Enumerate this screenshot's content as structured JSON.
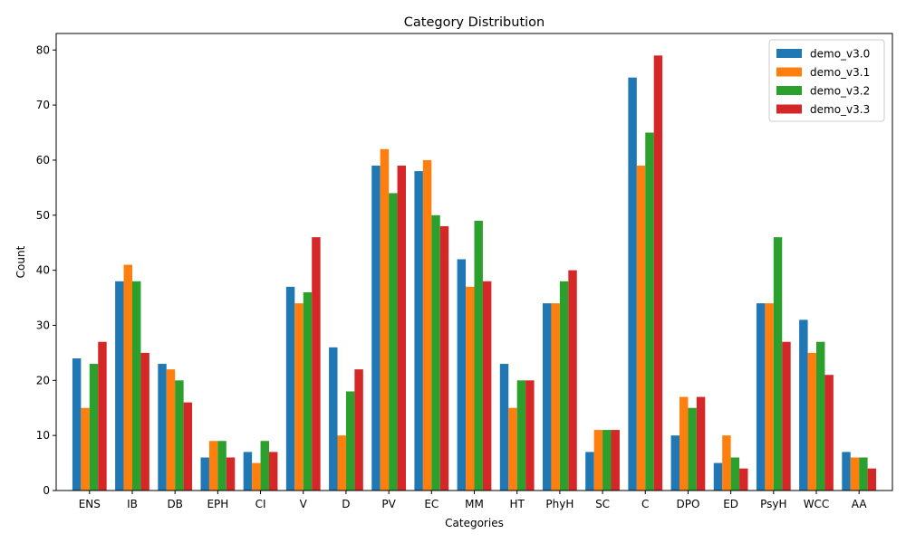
{
  "chart_data": {
    "type": "bar",
    "title": "Category Distribution",
    "xlabel": "Categories",
    "ylabel": "Count",
    "ylim": [
      0,
      83
    ],
    "yticks": [
      0,
      10,
      20,
      30,
      40,
      50,
      60,
      70,
      80
    ],
    "legend_position": "top-right",
    "grid": false,
    "categories": [
      "ENS",
      "IB",
      "DB",
      "EPH",
      "CI",
      "V",
      "D",
      "PV",
      "EC",
      "MM",
      "HT",
      "PhyH",
      "SC",
      "C",
      "DPO",
      "ED",
      "PsyH",
      "WCC",
      "AA"
    ],
    "series": [
      {
        "name": "demo_v3.0",
        "color": "#1f77b4",
        "values": [
          24,
          38,
          23,
          6,
          7,
          37,
          26,
          59,
          58,
          42,
          23,
          34,
          7,
          75,
          10,
          5,
          34,
          31,
          7
        ]
      },
      {
        "name": "demo_v3.1",
        "color": "#ff7f0e",
        "values": [
          15,
          41,
          22,
          9,
          5,
          34,
          10,
          62,
          60,
          37,
          15,
          34,
          11,
          59,
          17,
          10,
          34,
          25,
          6
        ]
      },
      {
        "name": "demo_v3.2",
        "color": "#2ca02c",
        "values": [
          23,
          38,
          20,
          9,
          9,
          36,
          18,
          54,
          50,
          49,
          20,
          38,
          11,
          65,
          15,
          6,
          46,
          27,
          6
        ]
      },
      {
        "name": "demo_v3.3",
        "color": "#d62728",
        "values": [
          27,
          25,
          16,
          6,
          7,
          46,
          22,
          59,
          48,
          38,
          20,
          40,
          11,
          79,
          17,
          4,
          27,
          21,
          4
        ]
      }
    ]
  }
}
